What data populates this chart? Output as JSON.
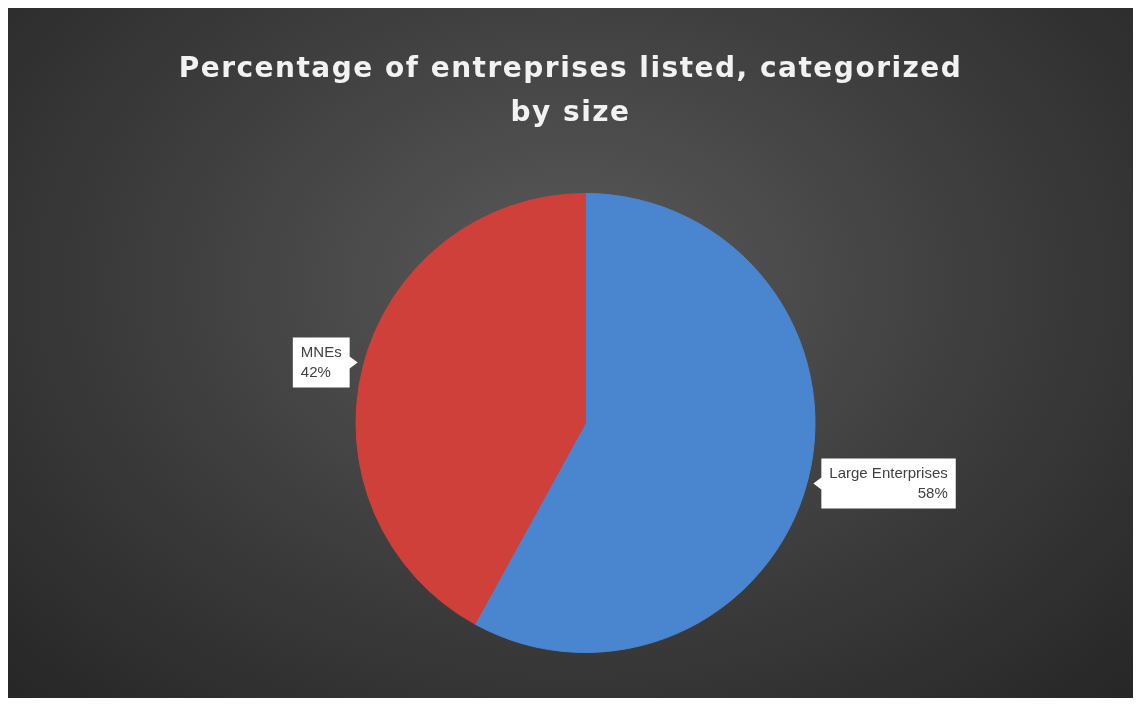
{
  "chart_data": {
    "type": "pie",
    "title": "Percentage of entreprises listed, categorized by size",
    "categories": [
      "Large Enterprises",
      "MNEs"
    ],
    "values": [
      58,
      42
    ],
    "colors": [
      "#4a86d0",
      "#d0403a"
    ],
    "value_labels": [
      "58%",
      "42%"
    ],
    "legend": false
  }
}
